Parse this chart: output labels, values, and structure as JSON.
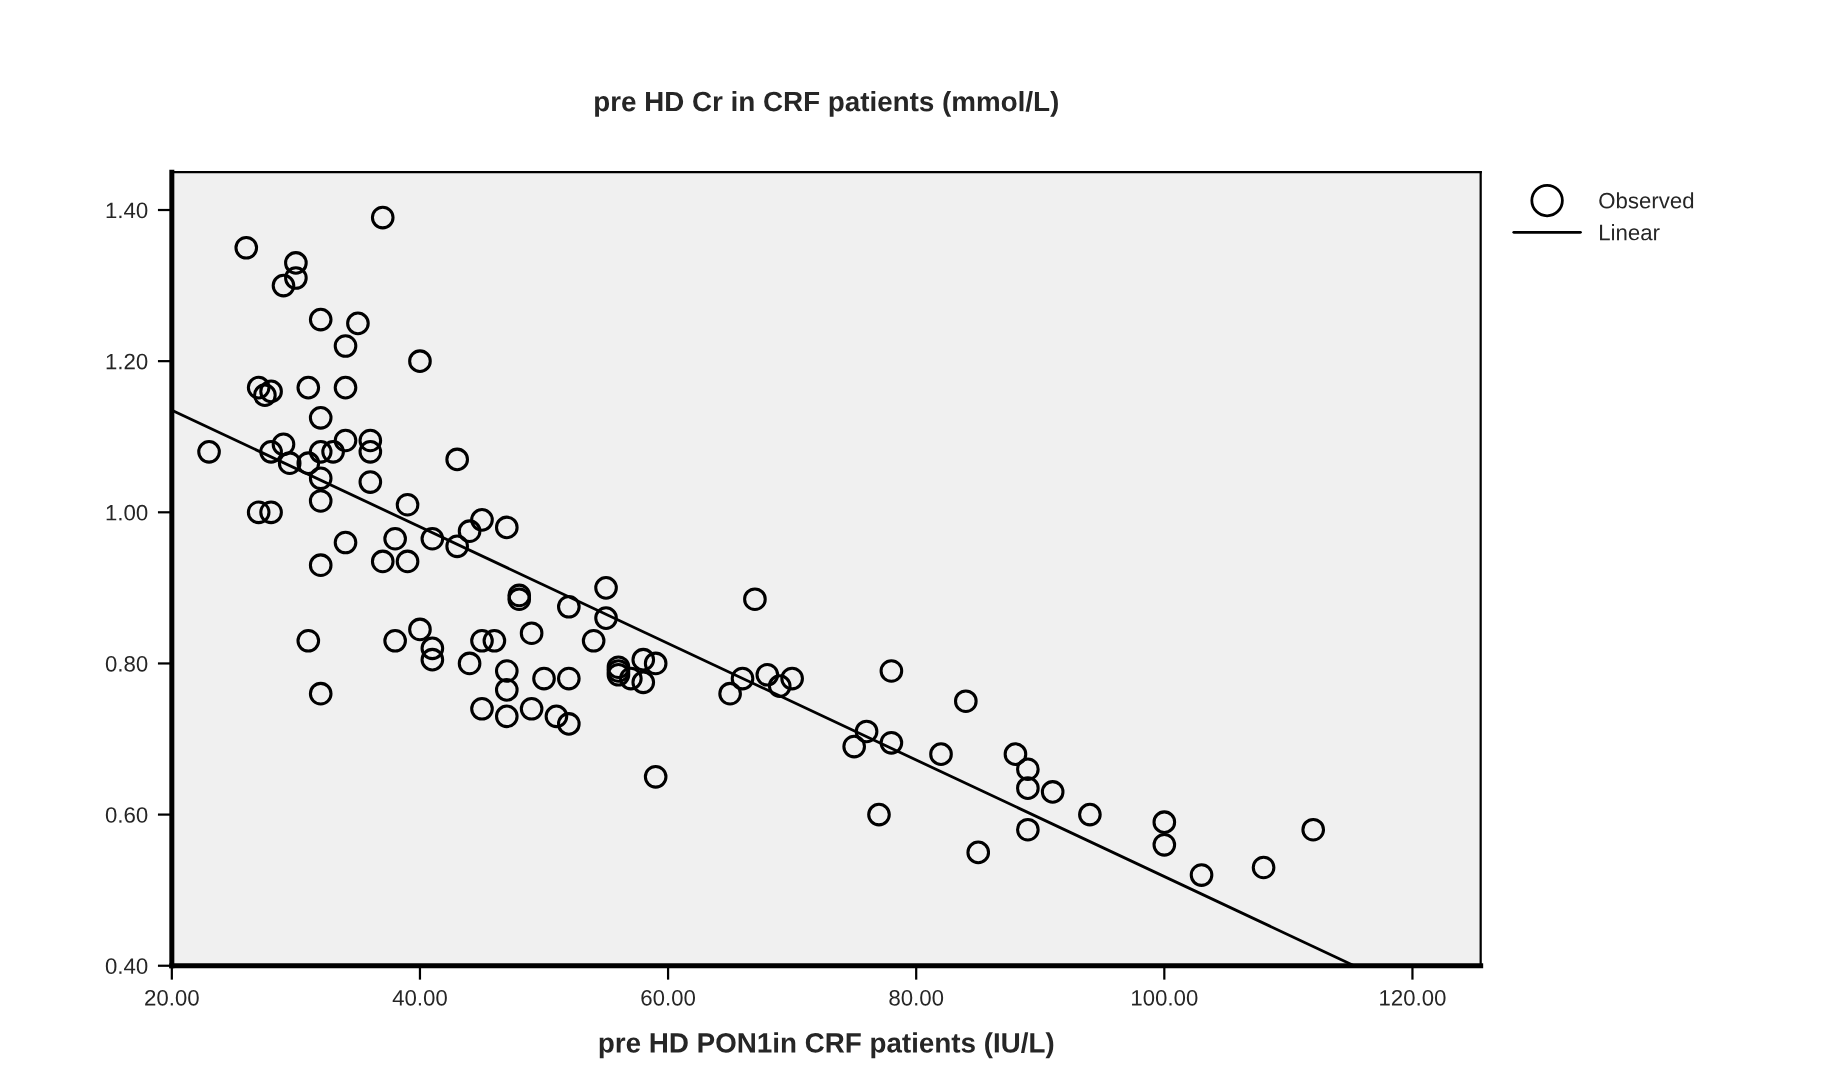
{
  "chart_data": {
    "type": "scatter",
    "title": "pre HD Cr in CRF patients (mmol/L)",
    "xlabel": "pre HD PON1in CRF patients (IU/L)",
    "xlim": [
      20,
      125.5
    ],
    "ylim": [
      0.4,
      1.45
    ],
    "xticks": [
      {
        "value": 20,
        "label": "20.00"
      },
      {
        "value": 40,
        "label": "40.00"
      },
      {
        "value": 60,
        "label": "60.00"
      },
      {
        "value": 80,
        "label": "80.00"
      },
      {
        "value": 100,
        "label": "100.00"
      },
      {
        "value": 120,
        "label": "120.00"
      }
    ],
    "yticks": [
      {
        "value": 0.4,
        "label": "0.40"
      },
      {
        "value": 0.6,
        "label": "0.60"
      },
      {
        "value": 0.8,
        "label": "0.80"
      },
      {
        "value": 1.0,
        "label": "1.00"
      },
      {
        "value": 1.2,
        "label": "1.20"
      },
      {
        "value": 1.4,
        "label": "1.40"
      }
    ],
    "grid": false,
    "legend": "top right",
    "series": [
      {
        "name": "Observed",
        "marker": "circle",
        "color": "#000000",
        "x": [
          23,
          26,
          27,
          27.5,
          28,
          27,
          28,
          28,
          29,
          29,
          30,
          30,
          29.5,
          31,
          31,
          32,
          32,
          32,
          32,
          32,
          32,
          31,
          32,
          33,
          34,
          34,
          34,
          34,
          35,
          36,
          36,
          36,
          37,
          37,
          38,
          38,
          39,
          39,
          40,
          40,
          41,
          41,
          41,
          43,
          43,
          44,
          44,
          45,
          45,
          45,
          46,
          47,
          47,
          47,
          47,
          48,
          48,
          49,
          49,
          50,
          51,
          52,
          52,
          52,
          54,
          55,
          55,
          56,
          56,
          56,
          57,
          58,
          58,
          59,
          59,
          65,
          66,
          67,
          68,
          69,
          70,
          75,
          76,
          77,
          78,
          78,
          82,
          84,
          85,
          88,
          89,
          89,
          89,
          91,
          94,
          100,
          100,
          103,
          108,
          112
        ],
        "values": [
          1.08,
          1.35,
          1.165,
          1.155,
          1.16,
          1.0,
          1.0,
          1.08,
          1.09,
          1.3,
          1.33,
          1.31,
          1.065,
          1.065,
          1.165,
          1.255,
          1.125,
          1.08,
          1.045,
          1.015,
          0.93,
          0.83,
          0.76,
          1.08,
          1.22,
          1.165,
          1.095,
          0.96,
          1.25,
          1.095,
          1.08,
          1.04,
          1.39,
          0.935,
          0.965,
          0.83,
          1.01,
          0.935,
          1.2,
          0.845,
          0.965,
          0.82,
          0.805,
          1.07,
          0.955,
          0.975,
          0.8,
          0.99,
          0.83,
          0.74,
          0.83,
          0.98,
          0.79,
          0.765,
          0.73,
          0.89,
          0.885,
          0.84,
          0.74,
          0.78,
          0.73,
          0.875,
          0.78,
          0.72,
          0.83,
          0.9,
          0.86,
          0.795,
          0.79,
          0.785,
          0.78,
          0.805,
          0.775,
          0.8,
          0.65,
          0.76,
          0.78,
          0.885,
          0.785,
          0.77,
          0.78,
          0.69,
          0.71,
          0.6,
          0.79,
          0.695,
          0.68,
          0.75,
          0.55,
          0.68,
          0.66,
          0.635,
          0.58,
          0.63,
          0.6,
          0.59,
          0.56,
          0.52,
          0.53,
          0.58
        ]
      },
      {
        "name": "Linear",
        "type": "line",
        "line_style": "solid",
        "color": "#000000",
        "x": [
          20,
          115.3
        ],
        "values": [
          1.135,
          0.4
        ]
      }
    ]
  }
}
